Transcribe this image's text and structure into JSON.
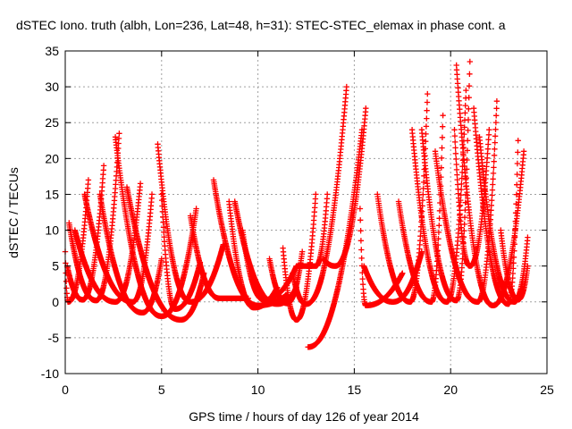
{
  "chart_data": {
    "type": "scatter",
    "title": "dSTEC Iono. truth (albh, Lon=236, Lat=48, h=31): STEC-STEC_elemax in phase cont. a",
    "xlabel": "GPS time / hours of day 126 of year 2014",
    "ylabel": "dSTEC  / TECUs",
    "xlim": [
      0,
      25
    ],
    "ylim": [
      -10,
      35
    ],
    "xticks": [
      "0",
      "5",
      "10",
      "15",
      "20",
      "25"
    ],
    "yticks": [
      "-10",
      "-5",
      "0",
      "5",
      "10",
      "15",
      "20",
      "25",
      "30",
      "35"
    ],
    "grid": true,
    "marker": "plus",
    "series_color": "#ff0000",
    "arcs": [
      {
        "start": 0.0,
        "end": 1.2,
        "min_x": 0.15,
        "min_y": 0.0,
        "left_y": 7,
        "right_y": 17
      },
      {
        "start": 0.1,
        "end": 2.0,
        "min_x": 0.9,
        "min_y": 0.3,
        "left_y": 5,
        "right_y": 19
      },
      {
        "start": 0.2,
        "end": 2.8,
        "min_x": 1.6,
        "min_y": 0.2,
        "left_y": 11,
        "right_y": 23.5
      },
      {
        "start": 0.5,
        "end": 3.9,
        "min_x": 2.6,
        "min_y": 0.0,
        "left_y": 10,
        "right_y": 16.5
      },
      {
        "start": 1.0,
        "end": 4.5,
        "min_x": 3.5,
        "min_y": 0.0,
        "left_y": 15,
        "right_y": 15
      },
      {
        "start": 1.8,
        "end": 5.0,
        "min_x": 4.0,
        "min_y": -1.5,
        "left_y": 15,
        "right_y": 6
      },
      {
        "start": 2.6,
        "end": 6.8,
        "min_x": 5.0,
        "min_y": -2.0,
        "left_y": 23,
        "right_y": 13
      },
      {
        "start": 3.2,
        "end": 7.2,
        "min_x": 6.0,
        "min_y": -2.5,
        "left_y": 16,
        "right_y": 4
      },
      {
        "start": 4.8,
        "end": 8.2,
        "min_x": 6.5,
        "min_y": 0.0,
        "left_y": 22,
        "right_y": 8
      },
      {
        "start": 5.0,
        "end": 7.0,
        "min_x": 5.7,
        "min_y": -1.0,
        "left_y": 15,
        "right_y": 5.5
      },
      {
        "start": 6.5,
        "end": 9.5,
        "min_x": 8.0,
        "min_y": 0.5,
        "left_y": 12,
        "right_y": 0.5
      },
      {
        "start": 7.7,
        "end": 11.5,
        "min_x": 10.0,
        "min_y": -0.5,
        "left_y": 17,
        "right_y": 1
      },
      {
        "start": 8.5,
        "end": 11.0,
        "min_x": 9.8,
        "min_y": -0.8,
        "left_y": 14,
        "right_y": 2
      },
      {
        "start": 8.8,
        "end": 12.0,
        "min_x": 11.0,
        "min_y": -0.3,
        "left_y": 14,
        "right_y": 2
      },
      {
        "start": 9.2,
        "end": 12.0,
        "min_x": 10.3,
        "min_y": 0.3,
        "left_y": 10,
        "right_y": 5
      },
      {
        "start": 10.6,
        "end": 12.3,
        "min_x": 11.5,
        "min_y": -0.2,
        "left_y": 6,
        "right_y": 7
      },
      {
        "start": 11.3,
        "end": 13.0,
        "min_x": 12.0,
        "min_y": -2.5,
        "left_y": 7.5,
        "right_y": 15
      },
      {
        "start": 11.8,
        "end": 14.6,
        "min_x": 12.5,
        "min_y": -0.3,
        "left_y": 4,
        "right_y": 30
      },
      {
        "start": 12.0,
        "end": 13.6,
        "min_x": 13.0,
        "min_y": 5.0,
        "left_y": 5,
        "right_y": 15
      },
      {
        "start": 12.6,
        "end": 15.4,
        "min_x": 12.6,
        "min_y": -6.3,
        "left_y": -6.3,
        "right_y": 24
      },
      {
        "start": 13.4,
        "end": 15.6,
        "min_x": 14.0,
        "min_y": 5.0,
        "left_y": 6,
        "right_y": 27
      },
      {
        "start": 15.3,
        "end": 17.5,
        "min_x": 15.6,
        "min_y": -0.5,
        "left_y": 13,
        "right_y": 4
      },
      {
        "start": 15.5,
        "end": 18.5,
        "min_x": 17.0,
        "min_y": 0.0,
        "left_y": 5,
        "right_y": 7
      },
      {
        "start": 16.2,
        "end": 18.8,
        "min_x": 17.9,
        "min_y": 0.0,
        "left_y": 15,
        "right_y": 29
      },
      {
        "start": 17.3,
        "end": 19.6,
        "min_x": 19.0,
        "min_y": 0.0,
        "left_y": 14,
        "right_y": 26
      },
      {
        "start": 18.0,
        "end": 20.8,
        "min_x": 19.8,
        "min_y": 0.0,
        "left_y": 24,
        "right_y": 29.5
      },
      {
        "start": 18.5,
        "end": 21.0,
        "min_x": 20.3,
        "min_y": 0.2,
        "left_y": 24,
        "right_y": 33.5
      },
      {
        "start": 19.2,
        "end": 22.4,
        "min_x": 21.4,
        "min_y": 0.0,
        "left_y": 21,
        "right_y": 28
      },
      {
        "start": 20.2,
        "end": 22.0,
        "min_x": 21.0,
        "min_y": 5.0,
        "left_y": 24,
        "right_y": 24
      },
      {
        "start": 20.3,
        "end": 23.8,
        "min_x": 22.2,
        "min_y": -0.5,
        "left_y": 33,
        "right_y": 21
      },
      {
        "start": 21.2,
        "end": 23.5,
        "min_x": 23.0,
        "min_y": -0.3,
        "left_y": 27,
        "right_y": 22.5
      },
      {
        "start": 21.5,
        "end": 24.0,
        "min_x": 23.3,
        "min_y": 0.0,
        "left_y": 23,
        "right_y": 9
      },
      {
        "start": 22.6,
        "end": 24.0,
        "min_x": 23.5,
        "min_y": 0.3,
        "left_y": 10,
        "right_y": 5
      }
    ]
  }
}
